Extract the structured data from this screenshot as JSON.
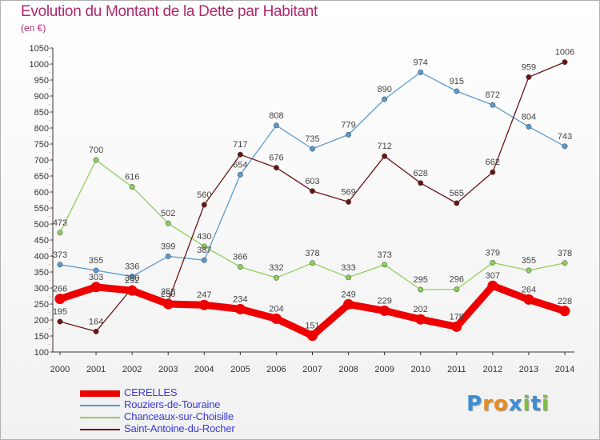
{
  "title": "Evolution du Montant de la Dette par Habitant",
  "subtitle": "(en €)",
  "logo": {
    "letters": [
      "P",
      "r",
      "o",
      "x",
      "i",
      "t",
      "i"
    ],
    "colors": [
      "#3b8fd8",
      "#e88c1e",
      "#e88c1e",
      "#3b8fd8",
      "#7cbf3a",
      "#3b8fd8",
      "#7cbf3a"
    ]
  },
  "chart_data": {
    "type": "line",
    "title": "Evolution du Montant de la Dette par Habitant",
    "ylabel": "(en €)",
    "x": [
      2000,
      2001,
      2002,
      2003,
      2004,
      2005,
      2006,
      2007,
      2008,
      2009,
      2010,
      2011,
      2012,
      2013,
      2014
    ],
    "ylim": [
      100,
      1050
    ],
    "yticks": [
      100,
      150,
      200,
      250,
      300,
      350,
      400,
      450,
      500,
      550,
      600,
      650,
      700,
      750,
      800,
      850,
      900,
      950,
      1000,
      1050
    ],
    "grid": false,
    "legend_position": "bottom-left",
    "series": [
      {
        "name": "CERELLES",
        "color": "#ee0000",
        "values": [
          266,
          303,
          292,
          250,
          247,
          234,
          204,
          151,
          249,
          229,
          202,
          179,
          307,
          264,
          228
        ]
      },
      {
        "name": "Rouziers-de-Touraine",
        "color": "#5a9bd0",
        "values": [
          373,
          355,
          336,
          399,
          387,
          654,
          808,
          735,
          779,
          890,
          974,
          915,
          872,
          804,
          743
        ]
      },
      {
        "name": "Chanceaux-sur-Choisille",
        "color": "#8ed05a",
        "values": [
          473,
          700,
          616,
          502,
          430,
          366,
          332,
          378,
          333,
          373,
          295,
          296,
          379,
          355,
          378
        ]
      },
      {
        "name": "Saint-Antoine-du-Rocher",
        "color": "#6b1515",
        "values": [
          195,
          164,
          300,
          258,
          560,
          717,
          676,
          603,
          569,
          712,
          628,
          565,
          662,
          959,
          1006
        ]
      }
    ]
  }
}
